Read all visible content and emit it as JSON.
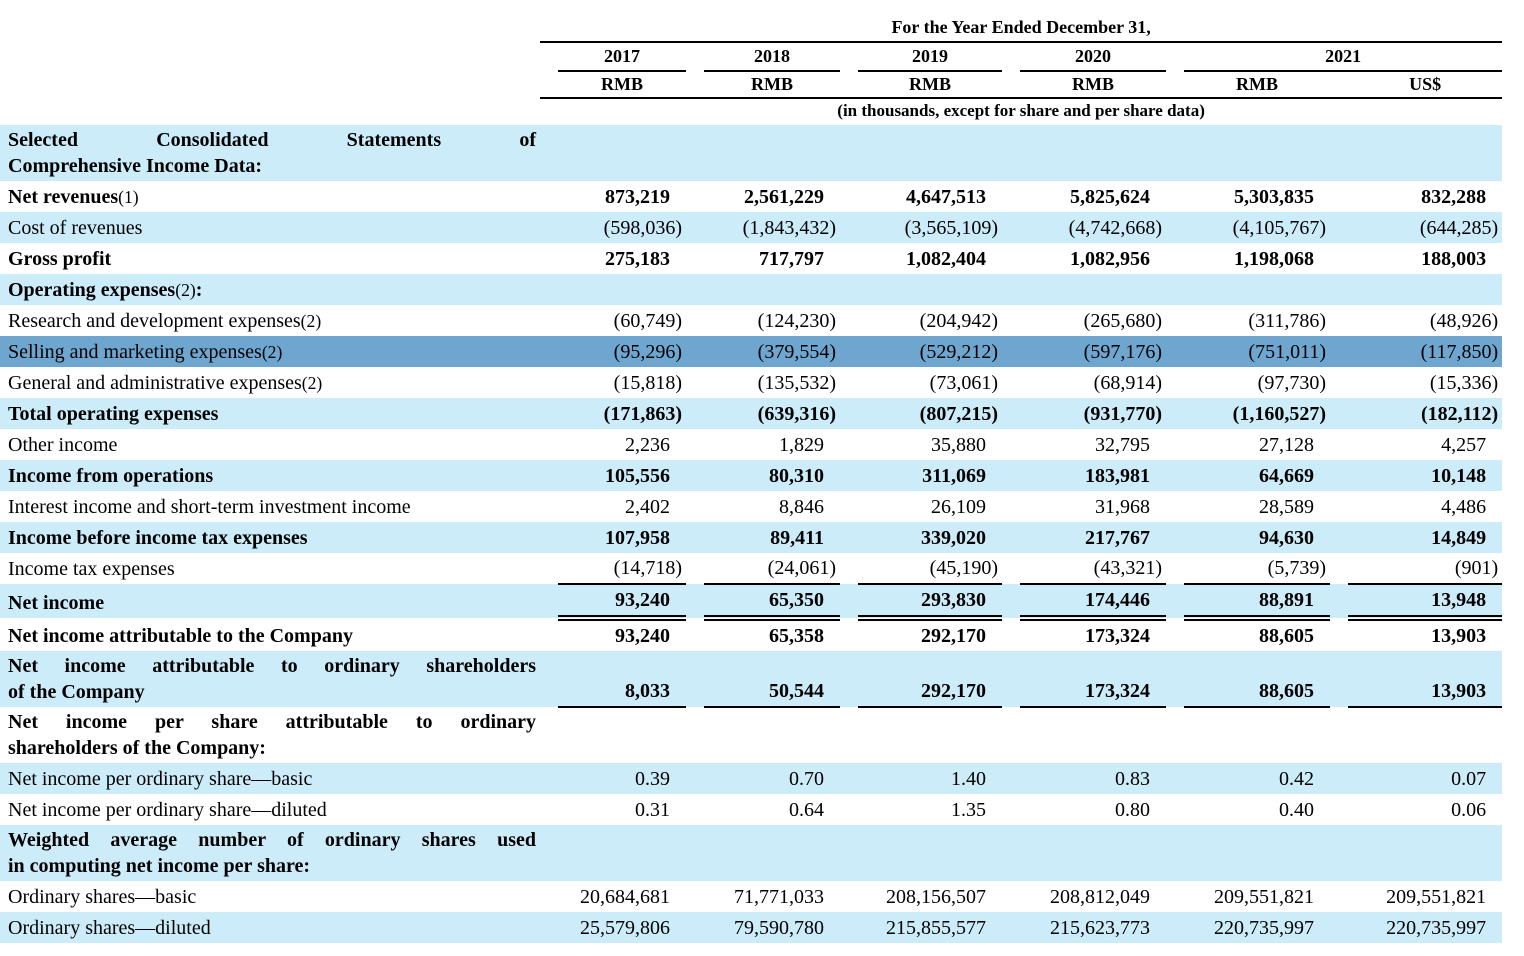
{
  "document": {
    "header": {
      "period_title": "For the Year Ended December 31,",
      "years": [
        {
          "label": "2017",
          "span": 1
        },
        {
          "label": "2018",
          "span": 1
        },
        {
          "label": "2019",
          "span": 1
        },
        {
          "label": "2020",
          "span": 1
        },
        {
          "label": "2021",
          "span": 2
        }
      ],
      "currencies": [
        "RMB",
        "RMB",
        "RMB",
        "RMB",
        "RMB",
        "US$"
      ],
      "units_note": "(in thousands, except for share and per share data)"
    },
    "colors": {
      "row_stripe": "#cdecfa",
      "row_highlight": "#6fa6d0",
      "text": "#000000"
    },
    "rows": [
      {
        "lines": [
          "Selected Consolidated Statements of",
          "Comprehensive Income Data:"
        ],
        "justify": true,
        "bold": true,
        "bg": "stripe",
        "values": null
      },
      {
        "lines": [
          "Net revenues"
        ],
        "note": "(1)",
        "bold": true,
        "bg": "white",
        "values": [
          "873,219",
          "2,561,229",
          "4,647,513",
          "5,825,624",
          "5,303,835",
          "832,288"
        ]
      },
      {
        "lines": [
          "Cost of revenues"
        ],
        "bold": false,
        "bg": "stripe",
        "values": [
          "(598,036)",
          "(1,843,432)",
          "(3,565,109)",
          "(4,742,668)",
          "(4,105,767)",
          "(644,285)"
        ]
      },
      {
        "lines": [
          "Gross profit"
        ],
        "bold": true,
        "bg": "white",
        "values": [
          "275,183",
          "717,797",
          "1,082,404",
          "1,082,956",
          "1,198,068",
          "188,003"
        ]
      },
      {
        "lines": [
          "Operating expenses"
        ],
        "note": "(2)",
        "after": ":",
        "bold": true,
        "bg": "stripe",
        "values": null
      },
      {
        "lines": [
          "Research and development expenses"
        ],
        "note": "(2)",
        "bold": false,
        "bg": "white",
        "values": [
          "(60,749)",
          "(124,230)",
          "(204,942)",
          "(265,680)",
          "(311,786)",
          "(48,926)"
        ]
      },
      {
        "lines": [
          "Selling and marketing expenses"
        ],
        "note": "(2)",
        "bold": false,
        "bg": "highlight",
        "values": [
          "(95,296)",
          "(379,554)",
          "(529,212)",
          "(597,176)",
          "(751,011)",
          "(117,850)"
        ]
      },
      {
        "lines": [
          "General and administrative expenses"
        ],
        "note": "(2)",
        "bold": false,
        "bg": "white",
        "values": [
          "(15,818)",
          "(135,532)",
          "(73,061)",
          "(68,914)",
          "(97,730)",
          "(15,336)"
        ]
      },
      {
        "lines": [
          "Total operating expenses"
        ],
        "bold": true,
        "bg": "stripe",
        "values": [
          "(171,863)",
          "(639,316)",
          "(807,215)",
          "(931,770)",
          "(1,160,527)",
          "(182,112)"
        ]
      },
      {
        "lines": [
          "Other income"
        ],
        "bold": false,
        "bg": "white",
        "values": [
          "2,236",
          "1,829",
          "35,880",
          "32,795",
          "27,128",
          "4,257"
        ]
      },
      {
        "lines": [
          "Income from operations"
        ],
        "bold": true,
        "bg": "stripe",
        "values": [
          "105,556",
          "80,310",
          "311,069",
          "183,981",
          "64,669",
          "10,148"
        ]
      },
      {
        "lines": [
          "Interest income and short-term investment income"
        ],
        "bold": false,
        "bg": "white",
        "values": [
          "2,402",
          "8,846",
          "26,109",
          "31,968",
          "28,589",
          "4,486"
        ]
      },
      {
        "lines": [
          "Income before income tax expenses"
        ],
        "bold": true,
        "bg": "stripe",
        "values": [
          "107,958",
          "89,411",
          "339,020",
          "217,767",
          "94,630",
          "14,849"
        ]
      },
      {
        "lines": [
          "Income tax expenses"
        ],
        "bold": false,
        "bg": "white",
        "rule": "single",
        "values": [
          "(14,718)",
          "(24,061)",
          "(45,190)",
          "(43,321)",
          "(5,739)",
          "(901)"
        ]
      },
      {
        "lines": [
          "Net income"
        ],
        "bold": true,
        "bg": "stripe",
        "rule": "double",
        "values": [
          "93,240",
          "65,350",
          "293,830",
          "174,446",
          "88,891",
          "13,948"
        ]
      },
      {
        "lines": [
          "Net income attributable to the Company"
        ],
        "bold": true,
        "bg": "white",
        "values": [
          "93,240",
          "65,358",
          "292,170",
          "173,324",
          "88,605",
          "13,903"
        ]
      },
      {
        "lines": [
          "Net income attributable to ordinary shareholders",
          "of the Company"
        ],
        "justify": true,
        "bold": true,
        "bg": "stripe",
        "rule": "single",
        "values": [
          "8,033",
          "50,544",
          "292,170",
          "173,324",
          "88,605",
          "13,903"
        ]
      },
      {
        "lines": [
          "Net income per share attributable to ordinary",
          "shareholders of the Company:"
        ],
        "justify": true,
        "bold": true,
        "bg": "white",
        "values": null
      },
      {
        "lines": [
          "Net income per ordinary share—basic"
        ],
        "bold": false,
        "bg": "stripe",
        "values": [
          "0.39",
          "0.70",
          "1.40",
          "0.83",
          "0.42",
          "0.07"
        ]
      },
      {
        "lines": [
          "Net income per ordinary share—diluted"
        ],
        "bold": false,
        "bg": "white",
        "values": [
          "0.31",
          "0.64",
          "1.35",
          "0.80",
          "0.40",
          "0.06"
        ]
      },
      {
        "lines": [
          "Weighted average number of ordinary shares used",
          "in computing net income per share:"
        ],
        "justify": true,
        "bold": true,
        "bg": "stripe",
        "values": null
      },
      {
        "lines": [
          "Ordinary shares—basic"
        ],
        "bold": false,
        "bg": "white",
        "values": [
          "20,684,681",
          "71,771,033",
          "208,156,507",
          "208,812,049",
          "209,551,821",
          "209,551,821"
        ]
      },
      {
        "lines": [
          "Ordinary shares—diluted"
        ],
        "bold": false,
        "bg": "stripe",
        "values": [
          "25,579,806",
          "79,590,780",
          "215,855,577",
          "215,623,773",
          "220,735,997",
          "220,735,997"
        ]
      }
    ]
  }
}
